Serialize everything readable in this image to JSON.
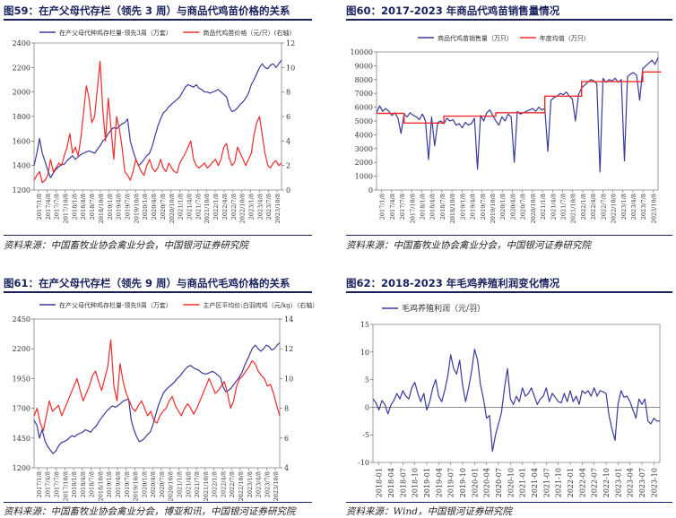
{
  "colors": {
    "blue": "#3a3a9c",
    "red": "#ee2b2b",
    "title": "#17215e"
  },
  "panels": [
    {
      "title": "图59：在产父母代存栏（领先 3 周）与商品代鸡苗价格的关系",
      "source": "资料来源：中国畜牧业协会禽业分会，中国银河证券研究院"
    },
    {
      "title": "图60：2017-2023 年商品代鸡苗销售量情况",
      "source": "资料来源：中国畜牧业协会禽业分会，中国银河证券研究院"
    },
    {
      "title": "图61：在产父母代存栏（领先 9 周）与商品代毛鸡价格的关系",
      "source": "资料来源：中国畜牧业协会禽业分会，博亚和讯，中国银河证券研究院"
    },
    {
      "title": "图62：2018-2023 年毛鸡养殖利润变化情况",
      "source": "资料来源：Wind，中国银河证券研究院"
    }
  ],
  "chart_data": [
    {
      "type": "line",
      "x_ticks": [
        "2017/1/8",
        "2017/4/8",
        "2017/7/8",
        "2017/10/8",
        "2018/1/8",
        "2018/4/8",
        "2018/7/8",
        "2018/10/8",
        "2019/1/8",
        "2019/4/8",
        "2019/7/8",
        "2019/10/8",
        "2020/1/8",
        "2020/4/8",
        "2020/7/8",
        "2020/10/8",
        "2021/1/8",
        "2021/4/8",
        "2021/7/8",
        "2021/10/8",
        "2022/1/8",
        "2022/4/8",
        "2022/7/8",
        "2022/10/8",
        "2023/1/8",
        "2023/4/8",
        "2023/7/8",
        "2023/10/8"
      ],
      "y_left": {
        "ticks": [
          "1200",
          "1400",
          "1600",
          "1800",
          "2000",
          "2200",
          "2400"
        ],
        "lim": [
          1200,
          2400
        ]
      },
      "y_right": {
        "ticks": [
          "0",
          "2",
          "4",
          "6",
          "8",
          "10",
          "12"
        ],
        "lim": [
          0,
          12
        ]
      },
      "series": [
        {
          "name": "在产父母代种鸡存栏量-领先3周（万套）",
          "axis": "left",
          "color": "#3a3a9c",
          "values": [
            1400,
            1500,
            1620,
            1500,
            1430,
            1360,
            1300,
            1340,
            1370,
            1390,
            1410,
            1410,
            1440,
            1460,
            1480,
            1450,
            1470,
            1490,
            1500,
            1510,
            1520,
            1510,
            1500,
            1530,
            1560,
            1600,
            1620,
            1660,
            1690,
            1710,
            1700,
            1720,
            1740,
            1750,
            1780,
            1600,
            1520,
            1450,
            1400,
            1420,
            1450,
            1480,
            1500,
            1560,
            1640,
            1720,
            1780,
            1830,
            1850,
            1880,
            1900,
            1920,
            1940,
            1960,
            2000,
            2040,
            2060,
            2050,
            2040,
            2060,
            2030,
            2020,
            2000,
            2000,
            1990,
            2000,
            2010,
            2020,
            2000,
            1980,
            1960,
            1880,
            1840,
            1850,
            1870,
            1900,
            1920,
            1950,
            1990,
            2060,
            2100,
            2150,
            2200,
            2230,
            2200,
            2190,
            2220,
            2230,
            2200,
            2230,
            2260
          ]
        },
        {
          "name": "商品代鸡苗价格（元/只）(右轴)",
          "axis": "right",
          "color": "#ee2b2b",
          "values": [
            0.8,
            1.2,
            1.5,
            0.6,
            0.8,
            1.2,
            2.5,
            1.5,
            1.8,
            2.2,
            2.0,
            2.8,
            3.5,
            4.6,
            3.0,
            3.5,
            2.8,
            4.2,
            6.3,
            8.5,
            7.5,
            5.5,
            6.0,
            8.2,
            10.5,
            6.5,
            4.0,
            7.5,
            5.0,
            2.5,
            6.0,
            5.0,
            3.5,
            1.5,
            1.2,
            0.8,
            1.5,
            2.5,
            2.0,
            1.5,
            1.2,
            2.0,
            2.5,
            1.8,
            1.5,
            1.8,
            2.5,
            1.8,
            1.5,
            2.2,
            1.8,
            1.5,
            1.4,
            2.2,
            2.6,
            3.0,
            3.5,
            4.0,
            2.5,
            2.0,
            1.8,
            2.0,
            2.2,
            1.8,
            2.0,
            2.3,
            2.5,
            2.0,
            2.5,
            3.5,
            3.8,
            2.6,
            2.0,
            2.3,
            3.5,
            3.0,
            2.5,
            2.0,
            2.5,
            3.0,
            4.5,
            5.5,
            6.0,
            4.5,
            3.0,
            2.0,
            1.8,
            2.2,
            2.4,
            2.0,
            2.2
          ]
        }
      ]
    },
    {
      "type": "line",
      "x_ticks": [
        "2017/1/8",
        "2017/4/8",
        "2017/7/8",
        "2017/10/8",
        "2018/1/8",
        "2018/4/8",
        "2018/7/8",
        "2018/10/8",
        "2019/1/8",
        "2019/4/8",
        "2019/7/8",
        "2019/10/8",
        "2020/1/8",
        "2020/4/8",
        "2020/7/8",
        "2020/10/8",
        "2021/1/8",
        "2021/4/8",
        "2021/7/8",
        "2021/10/8",
        "2022/1/8",
        "2022/4/8",
        "2022/7/8",
        "2022/10/8",
        "2023/1/8",
        "2023/4/8",
        "2023/7/8",
        "2023/10/8"
      ],
      "y": {
        "ticks": [
          "0",
          "1000",
          "2000",
          "3000",
          "4000",
          "5000",
          "6000",
          "7000",
          "8000",
          "9000",
          "10000"
        ],
        "lim": [
          0,
          10000
        ]
      },
      "series": [
        {
          "name": "商品代鸡苗销售量（万只）",
          "color": "#3a3a9c",
          "values": [
            5600,
            6100,
            5700,
            5900,
            5700,
            5400,
            5600,
            5200,
            4100,
            5500,
            5300,
            5600,
            5400,
            5300,
            5100,
            5500,
            5000,
            2200,
            5300,
            3200,
            4900,
            5000,
            4800,
            5200,
            5000,
            5100,
            4700,
            4800,
            4500,
            4900,
            4700,
            4800,
            5200,
            1500,
            5400,
            5000,
            5600,
            5800,
            5400,
            5000,
            4700,
            5300,
            5000,
            5500,
            5300,
            2000,
            5700,
            5500,
            5600,
            5700,
            5800,
            5900,
            5700,
            6000,
            5800,
            5900,
            2800,
            6500,
            6700,
            6800,
            7000,
            6900,
            7100,
            6800,
            6600,
            5000,
            6900,
            7400,
            7600,
            7800,
            8000,
            7900,
            7700,
            1300,
            8100,
            7800,
            8000,
            7900,
            8100,
            7800,
            8000,
            2100,
            8200,
            8400,
            8500,
            8300,
            6500,
            8800,
            9000,
            9200,
            9400,
            9100,
            9600
          ]
        },
        {
          "name": "年度均值（万只）",
          "color": "#ee2b2b",
          "type": "step",
          "segments": [
            {
              "from": 0,
              "to": 9,
              "value": 5550
            },
            {
              "from": 9,
              "to": 22,
              "value": 4850
            },
            {
              "from": 22,
              "to": 39,
              "value": 5350
            },
            {
              "from": 39,
              "to": 55,
              "value": 5600
            },
            {
              "from": 55,
              "to": 67,
              "value": 6800
            },
            {
              "from": 67,
              "to": 87,
              "value": 7850
            },
            {
              "from": 87,
              "to": 93,
              "value": 8550
            }
          ]
        }
      ]
    },
    {
      "type": "line",
      "x_ticks": [
        "2017/1/8",
        "2017/4/8",
        "2017/7/8",
        "2017/10/8",
        "2018/1/8",
        "2018/4/8",
        "2018/7/8",
        "2018/10/8",
        "2019/1/8",
        "2019/4/8",
        "2019/7/8",
        "2019/10/8",
        "2020/1/8",
        "2020/4/8",
        "2020/7/8",
        "2020/10/8",
        "2021/1/8",
        "2021/4/8",
        "2021/7/8",
        "2021/10/8",
        "2022/1/8",
        "2022/4/8",
        "2022/7/8",
        "2022/10/8",
        "2023/1/8",
        "2023/4/8",
        "2023/7/8",
        "2023/10/8"
      ],
      "y_left": {
        "ticks": [
          "1200",
          "1450",
          "1700",
          "1950",
          "2200",
          "2450"
        ],
        "lim": [
          1200,
          2450
        ]
      },
      "y_right": {
        "ticks": [
          "4",
          "6",
          "8",
          "10",
          "12",
          "14"
        ],
        "lim": [
          4,
          14
        ]
      },
      "series": [
        {
          "name": "在产父母代种鸡存栏量-领先9周（万套）",
          "axis": "left",
          "color": "#3a3a9c",
          "values": [
            1600,
            1560,
            1450,
            1520,
            1430,
            1380,
            1350,
            1320,
            1340,
            1380,
            1410,
            1420,
            1430,
            1450,
            1470,
            1460,
            1480,
            1490,
            1500,
            1520,
            1510,
            1500,
            1530,
            1550,
            1590,
            1620,
            1650,
            1680,
            1700,
            1720,
            1710,
            1720,
            1740,
            1760,
            1770,
            1780,
            1600,
            1520,
            1460,
            1420,
            1430,
            1450,
            1480,
            1500,
            1560,
            1640,
            1720,
            1780,
            1830,
            1860,
            1880,
            1900,
            1920,
            1950,
            1970,
            2000,
            2030,
            2050,
            2060,
            2040,
            2030,
            2020,
            2000,
            1990,
            1990,
            2000,
            2010,
            2000,
            1980,
            1960,
            1880,
            1840,
            1850,
            1870,
            1900,
            1930,
            1960,
            2000,
            2060,
            2110,
            2160,
            2210,
            2230,
            2200,
            2180,
            2200,
            2230,
            2220,
            2190,
            2200,
            2230,
            2250
          ]
        },
        {
          "name": "主产区平均价:白羽肉鸡（元/kg）（右轴）",
          "axis": "right",
          "color": "#ee2b2b",
          "values": [
            7.5,
            8.0,
            7.0,
            6.5,
            7.5,
            8.5,
            7.8,
            8.0,
            8.2,
            7.5,
            8.0,
            8.5,
            9.0,
            9.5,
            10.0,
            9.2,
            8.5,
            9.0,
            9.5,
            10.2,
            10.5,
            9.8,
            9.2,
            10.0,
            10.8,
            12.6,
            9.5,
            8.5,
            11.0,
            9.8,
            9.0,
            8.5,
            8.0,
            7.8,
            8.2,
            8.5,
            8.0,
            7.5,
            7.8,
            7.2,
            7.0,
            7.5,
            7.8,
            8.0,
            8.5,
            8.8,
            8.2,
            7.8,
            7.5,
            8.0,
            8.3,
            8.0,
            7.6,
            8.0,
            8.5,
            9.0,
            9.5,
            10.0,
            9.5,
            9.0,
            9.2,
            9.5,
            9.8,
            9.0,
            8.0,
            8.5,
            9.5,
            10.0,
            10.2,
            10.5,
            10.8,
            11.2,
            11.0,
            10.5,
            10.2,
            10.0,
            9.5,
            9.6,
            9.0,
            8.2,
            7.5
          ]
        }
      ]
    },
    {
      "type": "line",
      "x_ticks": [
        "2018-01",
        "2018-04",
        "2018-07",
        "2018-10",
        "2019-01",
        "2019-04",
        "2019-07",
        "2019-10",
        "2020-01",
        "2020-04",
        "2020-07",
        "2020-10",
        "2021-01",
        "2021-04",
        "2021-07",
        "2021-10",
        "2022-01",
        "2022-04",
        "2022-07",
        "2022-10",
        "2023-01",
        "2023-04",
        "2023-07",
        "2023-10"
      ],
      "y": {
        "ticks": [
          "-10",
          "-5",
          "0",
          "5",
          "10",
          "15"
        ],
        "lim": [
          -10,
          15
        ]
      },
      "legend": "top-left",
      "series": [
        {
          "name": "毛鸡养殖利润（元/羽）",
          "color": "#3a3a9c",
          "values": [
            1.5,
            0.8,
            -0.5,
            1.2,
            0.5,
            -1.2,
            0.4,
            1.2,
            2.5,
            1.5,
            3.0,
            2.0,
            1.5,
            3.5,
            4.5,
            2.5,
            1.0,
            2.5,
            -0.5,
            1.0,
            3.5,
            5.0,
            2.0,
            1.0,
            3.0,
            5.5,
            9.5,
            7.0,
            6.0,
            8.5,
            4.0,
            1.0,
            3.5,
            6.5,
            10.5,
            8.5,
            4.0,
            1.5,
            -2.0,
            -1.5,
            -8.0,
            -5.0,
            -3.0,
            -1.0,
            3.5,
            7.0,
            1.5,
            0.5,
            2.0,
            1.0,
            3.5,
            2.0,
            2.5,
            3.5,
            2.0,
            0.5,
            1.5,
            2.0,
            3.5,
            1.0,
            2.5,
            1.8,
            1.0,
            0.8,
            2.5,
            1.0,
            3.0,
            1.0,
            2.0,
            0.5,
            3.0,
            2.5,
            3.0,
            2.0,
            3.5,
            2.0,
            3.0,
            2.8,
            2.5,
            -1.5,
            -4.0,
            -6.0,
            0.5,
            3.0,
            1.8,
            2.0,
            1.0,
            -0.5,
            -2.0,
            1.5,
            0.5,
            1.5,
            -2.5,
            -3.0,
            -2.0,
            -2.5,
            -2.5
          ]
        }
      ]
    }
  ]
}
